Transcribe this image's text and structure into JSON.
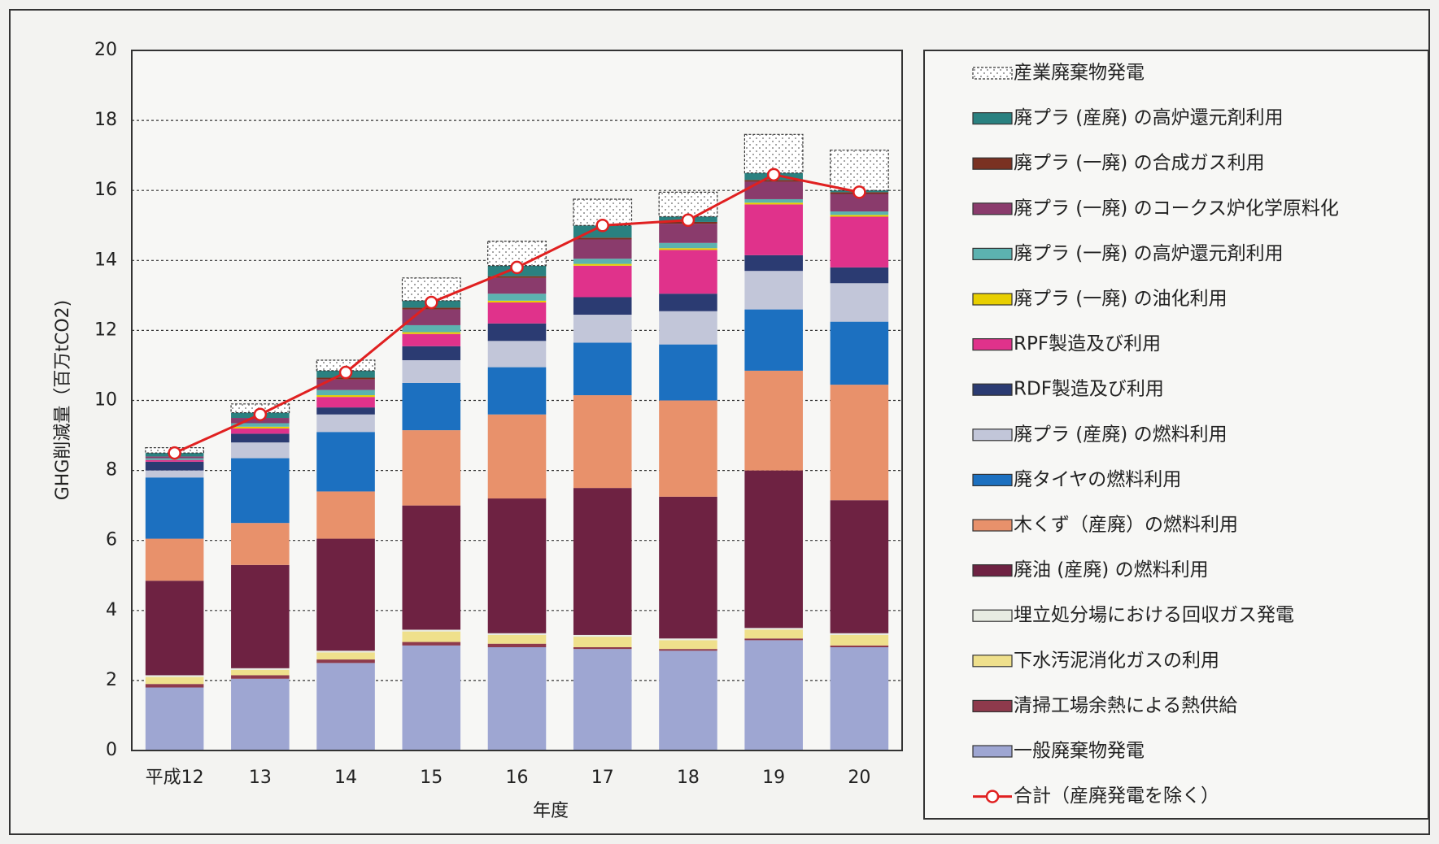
{
  "chart_data": {
    "type": "bar",
    "stacked": true,
    "xlabel": "年度",
    "ylabel": "GHG削減量（百万tCO2)",
    "categories": [
      "平成12",
      "13",
      "14",
      "15",
      "16",
      "17",
      "18",
      "19",
      "20"
    ],
    "ylim": [
      0,
      20
    ],
    "yticks": [
      0,
      2,
      4,
      6,
      8,
      10,
      12,
      14,
      16,
      18,
      20
    ],
    "grid": true,
    "series": [
      {
        "name": "一般廃棄物発電",
        "color": "#9ea6d2",
        "values": [
          1.8,
          2.05,
          2.5,
          3.0,
          2.95,
          2.9,
          2.85,
          3.15,
          2.95
        ]
      },
      {
        "name": "清掃工場余熱による熱供給",
        "color": "#8e3a4c",
        "values": [
          0.1,
          0.1,
          0.1,
          0.1,
          0.1,
          0.05,
          0.05,
          0.05,
          0.05
        ]
      },
      {
        "name": "下水汚泥消化ガスの利用",
        "color": "#efe08c",
        "values": [
          0.2,
          0.15,
          0.2,
          0.3,
          0.25,
          0.3,
          0.25,
          0.25,
          0.3
        ]
      },
      {
        "name": "埋立処分場における回収ガス発電",
        "color": "#e8ece2",
        "values": [
          0.05,
          0.05,
          0.05,
          0.05,
          0.05,
          0.05,
          0.05,
          0.05,
          0.05
        ]
      },
      {
        "name": "廃油 (産廃) の燃料利用",
        "color": "#6e2242",
        "values": [
          2.7,
          2.95,
          3.2,
          3.55,
          3.85,
          4.2,
          4.05,
          4.5,
          3.8
        ]
      },
      {
        "name": "木くず（産廃）の燃料利用",
        "color": "#e8916b",
        "values": [
          1.2,
          1.2,
          1.35,
          2.15,
          2.4,
          2.65,
          2.75,
          2.85,
          3.3
        ]
      },
      {
        "name": "廃タイヤの燃料利用",
        "color": "#1c70c0",
        "values": [
          1.75,
          1.85,
          1.7,
          1.35,
          1.35,
          1.5,
          1.6,
          1.75,
          1.8
        ]
      },
      {
        "name": "廃プラ (産廃) の燃料利用",
        "color": "#c2c6d9",
        "values": [
          0.2,
          0.45,
          0.5,
          0.65,
          0.75,
          0.8,
          0.95,
          1.1,
          1.1
        ]
      },
      {
        "name": "RDF製造及び利用",
        "color": "#2b3b72",
        "values": [
          0.25,
          0.25,
          0.2,
          0.4,
          0.5,
          0.5,
          0.5,
          0.45,
          0.45
        ]
      },
      {
        "name": "RPF製造及び利用",
        "color": "#e0328b",
        "values": [
          0.05,
          0.15,
          0.3,
          0.35,
          0.6,
          0.9,
          1.25,
          1.45,
          1.45
        ]
      },
      {
        "name": "廃プラ (一廃) の油化利用",
        "color": "#e8cf00",
        "values": [
          0,
          0.05,
          0.05,
          0.05,
          0.05,
          0.05,
          0.05,
          0.05,
          0.05
        ]
      },
      {
        "name": "廃プラ (一廃) の高炉還元剤利用",
        "color": "#5cb2b0",
        "values": [
          0.05,
          0.1,
          0.15,
          0.2,
          0.2,
          0.15,
          0.15,
          0.1,
          0.1
        ]
      },
      {
        "name": "廃プラ (一廃) のコークス炉化学原料化",
        "color": "#8a3b6c",
        "values": [
          0.05,
          0.15,
          0.3,
          0.45,
          0.45,
          0.55,
          0.55,
          0.5,
          0.5
        ]
      },
      {
        "name": "廃プラ (一廃) の合成ガス利用",
        "color": "#7a3122",
        "values": [
          0,
          0,
          0.05,
          0.05,
          0.05,
          0.05,
          0.05,
          0.05,
          0.05
        ]
      },
      {
        "name": "廃プラ (産廃) の高炉還元剤利用",
        "color": "#2a8180",
        "values": [
          0.1,
          0.15,
          0.2,
          0.2,
          0.3,
          0.35,
          0.15,
          0.2,
          0.05
        ]
      },
      {
        "name": "産業廃棄物発電",
        "color": "#ffffff",
        "pattern": "dots",
        "values": [
          0.15,
          0.25,
          0.3,
          0.65,
          0.7,
          0.75,
          0.7,
          1.1,
          1.15
        ]
      }
    ],
    "line": {
      "name": "合計（産廃発電を除く）",
      "color": "#e02020",
      "values": [
        8.5,
        9.6,
        10.8,
        12.8,
        13.8,
        15.0,
        15.15,
        16.45,
        15.95
      ]
    }
  }
}
